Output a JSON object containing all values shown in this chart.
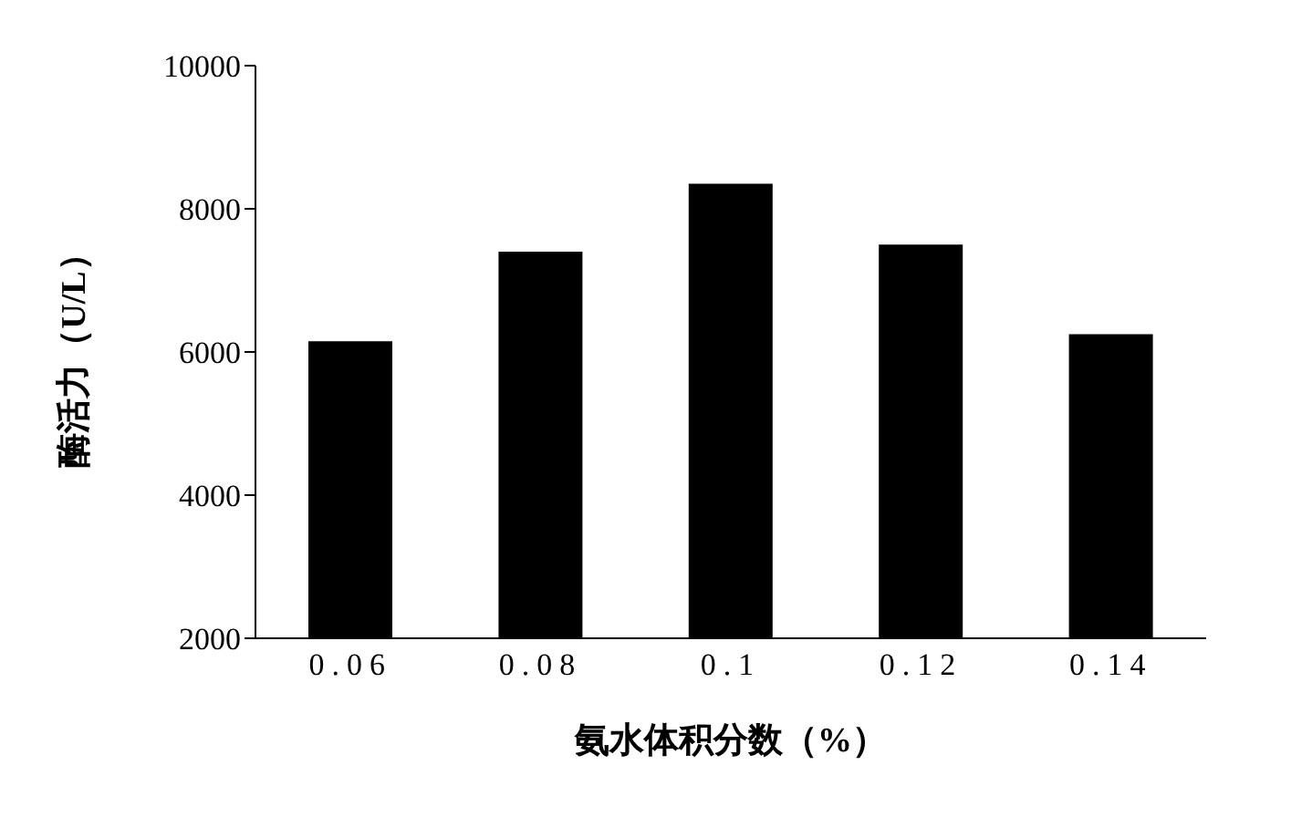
{
  "chart_data": {
    "type": "bar",
    "xlabel": "氨水体积分数（%）",
    "ylabel": "酶活力（U/L）",
    "categories": [
      "0.06",
      "0.08",
      "0.1",
      "0.12",
      "0.14"
    ],
    "values": [
      6150,
      7400,
      8350,
      7500,
      6250
    ],
    "color": "#000000",
    "ylim": [
      2000,
      10000
    ],
    "yticks": [
      2000,
      4000,
      6000,
      8000,
      10000
    ],
    "grid": false,
    "legend": false
  }
}
